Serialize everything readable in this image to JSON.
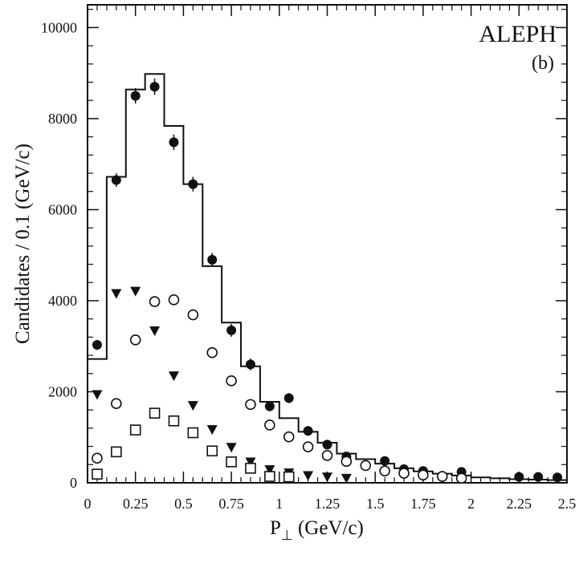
{
  "chart_data": {
    "type": "scatter",
    "title": "",
    "labels": {
      "experiment": "ALEPH",
      "panel": "(b)"
    },
    "xlabel": {
      "main": "P",
      "sub": "⊥",
      "units": " (GeV/c)"
    },
    "ylabel": "Candidates / 0.1 (GeV/c)",
    "xlim": [
      0,
      2.5
    ],
    "ylim": [
      0,
      10500
    ],
    "x_ticks": [
      {
        "value": 0,
        "label": "0"
      },
      {
        "value": 0.25,
        "label": "0.25"
      },
      {
        "value": 0.5,
        "label": "0.5"
      },
      {
        "value": 0.75,
        "label": "0.75"
      },
      {
        "value": 1,
        "label": "1"
      },
      {
        "value": 1.25,
        "label": "1.25"
      },
      {
        "value": 1.5,
        "label": "1.5"
      },
      {
        "value": 1.75,
        "label": "1.75"
      },
      {
        "value": 2,
        "label": "2"
      },
      {
        "value": 2.25,
        "label": "2.25"
      },
      {
        "value": 2.5,
        "label": "2.5"
      }
    ],
    "y_ticks": [
      {
        "value": 0,
        "label": "0"
      },
      {
        "value": 2000,
        "label": "2000"
      },
      {
        "value": 4000,
        "label": "4000"
      },
      {
        "value": 6000,
        "label": "6000"
      },
      {
        "value": 8000,
        "label": "8000"
      },
      {
        "value": 10000,
        "label": "10000"
      }
    ],
    "grid": false,
    "histogram": {
      "bin_width": 0.1,
      "bins": [
        {
          "x0": 0.0,
          "value": 2720
        },
        {
          "x0": 0.1,
          "value": 6720
        },
        {
          "x0": 0.2,
          "value": 8640
        },
        {
          "x0": 0.3,
          "value": 8980
        },
        {
          "x0": 0.4,
          "value": 7840
        },
        {
          "x0": 0.5,
          "value": 6560
        },
        {
          "x0": 0.6,
          "value": 4760
        },
        {
          "x0": 0.7,
          "value": 3520
        },
        {
          "x0": 0.8,
          "value": 2560
        },
        {
          "x0": 0.9,
          "value": 1780
        },
        {
          "x0": 1.0,
          "value": 1420
        },
        {
          "x0": 1.1,
          "value": 1120
        },
        {
          "x0": 1.2,
          "value": 880
        },
        {
          "x0": 1.3,
          "value": 640
        },
        {
          "x0": 1.4,
          "value": 520
        },
        {
          "x0": 1.5,
          "value": 420
        },
        {
          "x0": 1.6,
          "value": 320
        },
        {
          "x0": 1.7,
          "value": 250
        },
        {
          "x0": 1.8,
          "value": 200
        },
        {
          "x0": 1.9,
          "value": 160
        },
        {
          "x0": 2.0,
          "value": 120
        },
        {
          "x0": 2.1,
          "value": 100
        },
        {
          "x0": 2.2,
          "value": 80
        },
        {
          "x0": 2.3,
          "value": 70
        },
        {
          "x0": 2.4,
          "value": 60
        }
      ]
    },
    "series": [
      {
        "marker": "filled-circle",
        "errors": true,
        "points": [
          {
            "x": 0.05,
            "y": 3030,
            "err": 110
          },
          {
            "x": 0.15,
            "y": 6650,
            "err": 150
          },
          {
            "x": 0.25,
            "y": 8500,
            "err": 170
          },
          {
            "x": 0.35,
            "y": 8700,
            "err": 180
          },
          {
            "x": 0.45,
            "y": 7480,
            "err": 170
          },
          {
            "x": 0.55,
            "y": 6560,
            "err": 160
          },
          {
            "x": 0.65,
            "y": 4900,
            "err": 150
          },
          {
            "x": 0.75,
            "y": 3350,
            "err": 140
          },
          {
            "x": 0.85,
            "y": 2600,
            "err": 130
          },
          {
            "x": 0.95,
            "y": 1680,
            "err": 110
          },
          {
            "x": 1.05,
            "y": 1860,
            "err": 110
          },
          {
            "x": 1.15,
            "y": 1140,
            "err": 100
          },
          {
            "x": 1.25,
            "y": 840,
            "err": 90
          },
          {
            "x": 1.35,
            "y": 580,
            "err": 80
          },
          {
            "x": 1.45,
            "y": 370,
            "err": 70
          },
          {
            "x": 1.55,
            "y": 480,
            "err": 70
          },
          {
            "x": 1.65,
            "y": 300,
            "err": 60
          },
          {
            "x": 1.75,
            "y": 260,
            "err": 60
          },
          {
            "x": 1.85,
            "y": 140,
            "err": 50
          },
          {
            "x": 1.95,
            "y": 240,
            "err": 50
          },
          {
            "x": 2.25,
            "y": 130,
            "err": 40
          },
          {
            "x": 2.35,
            "y": 130,
            "err": 40
          },
          {
            "x": 2.45,
            "y": 120,
            "err": 40
          }
        ]
      },
      {
        "marker": "open-circle",
        "errors": false,
        "points": [
          {
            "x": 0.05,
            "y": 540
          },
          {
            "x": 0.15,
            "y": 1740
          },
          {
            "x": 0.25,
            "y": 3140
          },
          {
            "x": 0.35,
            "y": 3980
          },
          {
            "x": 0.45,
            "y": 4020
          },
          {
            "x": 0.55,
            "y": 3690
          },
          {
            "x": 0.65,
            "y": 2860
          },
          {
            "x": 0.75,
            "y": 2240
          },
          {
            "x": 0.85,
            "y": 1720
          },
          {
            "x": 0.95,
            "y": 1270
          },
          {
            "x": 1.05,
            "y": 1010
          },
          {
            "x": 1.15,
            "y": 790
          },
          {
            "x": 1.25,
            "y": 600
          },
          {
            "x": 1.35,
            "y": 470
          },
          {
            "x": 1.45,
            "y": 380
          },
          {
            "x": 1.55,
            "y": 260
          },
          {
            "x": 1.65,
            "y": 210
          },
          {
            "x": 1.75,
            "y": 170
          },
          {
            "x": 1.85,
            "y": 140
          },
          {
            "x": 1.95,
            "y": 100
          }
        ]
      },
      {
        "marker": "filled-triangle-down",
        "errors": false,
        "points": [
          {
            "x": 0.05,
            "y": 1930
          },
          {
            "x": 0.15,
            "y": 4150
          },
          {
            "x": 0.25,
            "y": 4200
          },
          {
            "x": 0.35,
            "y": 3330
          },
          {
            "x": 0.45,
            "y": 2340
          },
          {
            "x": 0.55,
            "y": 1690
          },
          {
            "x": 0.65,
            "y": 1160
          },
          {
            "x": 0.75,
            "y": 770
          },
          {
            "x": 0.85,
            "y": 450
          },
          {
            "x": 0.95,
            "y": 280
          },
          {
            "x": 1.05,
            "y": 210
          },
          {
            "x": 1.15,
            "y": 150
          },
          {
            "x": 1.25,
            "y": 120
          },
          {
            "x": 1.35,
            "y": 90
          }
        ]
      },
      {
        "marker": "open-square",
        "errors": false,
        "points": [
          {
            "x": 0.05,
            "y": 190
          },
          {
            "x": 0.15,
            "y": 680
          },
          {
            "x": 0.25,
            "y": 1160
          },
          {
            "x": 0.35,
            "y": 1530
          },
          {
            "x": 0.45,
            "y": 1360
          },
          {
            "x": 0.55,
            "y": 1100
          },
          {
            "x": 0.65,
            "y": 700
          },
          {
            "x": 0.75,
            "y": 460
          },
          {
            "x": 0.85,
            "y": 320
          },
          {
            "x": 0.95,
            "y": 140
          },
          {
            "x": 1.05,
            "y": 130
          }
        ]
      }
    ]
  }
}
